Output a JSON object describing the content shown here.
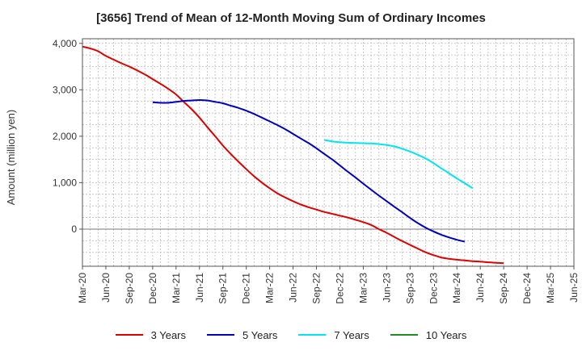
{
  "chart_data": {
    "type": "line",
    "title": "[3656]  Trend of Mean of 12-Month Moving Sum of Ordinary Incomes",
    "xlabel": "",
    "ylabel": "Amount (million yen)",
    "ylim": [
      -800,
      4100
    ],
    "y_ticks": [
      0,
      1000,
      2000,
      3000,
      4000
    ],
    "y_tick_labels": [
      "0",
      "1,000",
      "2,000",
      "3,000",
      "4,000"
    ],
    "categories": [
      "Mar-20",
      "Jun-20",
      "Sep-20",
      "Dec-20",
      "Mar-21",
      "Jun-21",
      "Sep-21",
      "Dec-21",
      "Mar-22",
      "Jun-22",
      "Sep-22",
      "Dec-22",
      "Mar-23",
      "Jun-23",
      "Sep-23",
      "Dec-23",
      "Mar-24",
      "Jun-24",
      "Sep-24",
      "Dec-24",
      "Mar-25",
      "Jun-25"
    ],
    "grid": true,
    "legend_position": "bottom",
    "series": [
      {
        "name": "3 Years",
        "color": "#dd0000",
        "points": [
          [
            0,
            3930
          ],
          [
            0.33,
            3890
          ],
          [
            0.67,
            3830
          ],
          [
            1,
            3730
          ],
          [
            1.33,
            3650
          ],
          [
            1.67,
            3570
          ],
          [
            2,
            3500
          ],
          [
            2.33,
            3420
          ],
          [
            2.67,
            3330
          ],
          [
            3,
            3230
          ],
          [
            3.33,
            3130
          ],
          [
            3.67,
            3020
          ],
          [
            4,
            2900
          ],
          [
            4.33,
            2740
          ],
          [
            4.67,
            2580
          ],
          [
            5,
            2400
          ],
          [
            5.33,
            2200
          ],
          [
            5.67,
            2000
          ],
          [
            6,
            1800
          ],
          [
            6.33,
            1620
          ],
          [
            6.67,
            1450
          ],
          [
            7,
            1290
          ],
          [
            7.33,
            1140
          ],
          [
            7.67,
            1000
          ],
          [
            8,
            880
          ],
          [
            8.33,
            770
          ],
          [
            8.67,
            680
          ],
          [
            9,
            600
          ],
          [
            9.33,
            530
          ],
          [
            9.67,
            470
          ],
          [
            10,
            420
          ],
          [
            10.33,
            370
          ],
          [
            10.67,
            330
          ],
          [
            11,
            290
          ],
          [
            11.33,
            250
          ],
          [
            11.67,
            200
          ],
          [
            12,
            150
          ],
          [
            12.33,
            90
          ],
          [
            12.67,
            0
          ],
          [
            13,
            -80
          ],
          [
            13.33,
            -170
          ],
          [
            13.67,
            -260
          ],
          [
            14,
            -340
          ],
          [
            14.33,
            -420
          ],
          [
            14.67,
            -500
          ],
          [
            15,
            -560
          ],
          [
            15.33,
            -610
          ],
          [
            15.67,
            -640
          ],
          [
            16,
            -660
          ],
          [
            16.33,
            -675
          ],
          [
            16.67,
            -690
          ],
          [
            17,
            -700
          ],
          [
            17.33,
            -715
          ],
          [
            17.67,
            -725
          ],
          [
            18,
            -735
          ]
        ]
      },
      {
        "name": "5 Years",
        "color": "#0000bb",
        "points": [
          [
            3,
            2730
          ],
          [
            3.33,
            2720
          ],
          [
            3.67,
            2720
          ],
          [
            4,
            2740
          ],
          [
            4.33,
            2760
          ],
          [
            4.67,
            2770
          ],
          [
            5,
            2780
          ],
          [
            5.33,
            2770
          ],
          [
            5.67,
            2740
          ],
          [
            6,
            2710
          ],
          [
            6.33,
            2660
          ],
          [
            6.67,
            2610
          ],
          [
            7,
            2550
          ],
          [
            7.33,
            2480
          ],
          [
            7.67,
            2400
          ],
          [
            8,
            2320
          ],
          [
            8.33,
            2240
          ],
          [
            8.67,
            2150
          ],
          [
            9,
            2050
          ],
          [
            9.33,
            1950
          ],
          [
            9.67,
            1850
          ],
          [
            10,
            1740
          ],
          [
            10.33,
            1620
          ],
          [
            10.67,
            1500
          ],
          [
            11,
            1370
          ],
          [
            11.33,
            1240
          ],
          [
            11.67,
            1110
          ],
          [
            12,
            980
          ],
          [
            12.33,
            850
          ],
          [
            12.67,
            720
          ],
          [
            13,
            600
          ],
          [
            13.33,
            480
          ],
          [
            13.67,
            360
          ],
          [
            14,
            240
          ],
          [
            14.33,
            130
          ],
          [
            14.67,
            30
          ],
          [
            15,
            -50
          ],
          [
            15.33,
            -120
          ],
          [
            15.67,
            -180
          ],
          [
            16,
            -230
          ],
          [
            16.33,
            -270
          ]
        ]
      },
      {
        "name": "7 Years",
        "color": "#00e5ee",
        "points": [
          [
            10.33,
            1920
          ],
          [
            10.67,
            1890
          ],
          [
            11,
            1870
          ],
          [
            11.33,
            1860
          ],
          [
            11.67,
            1855
          ],
          [
            12,
            1850
          ],
          [
            12.33,
            1845
          ],
          [
            12.67,
            1830
          ],
          [
            13,
            1810
          ],
          [
            13.33,
            1780
          ],
          [
            13.67,
            1730
          ],
          [
            14,
            1670
          ],
          [
            14.33,
            1600
          ],
          [
            14.67,
            1520
          ],
          [
            15,
            1420
          ],
          [
            15.33,
            1310
          ],
          [
            15.67,
            1200
          ],
          [
            16,
            1090
          ],
          [
            16.33,
            990
          ],
          [
            16.67,
            880
          ]
        ]
      },
      {
        "name": "10 Years",
        "color": "#228b22",
        "points": []
      }
    ]
  }
}
